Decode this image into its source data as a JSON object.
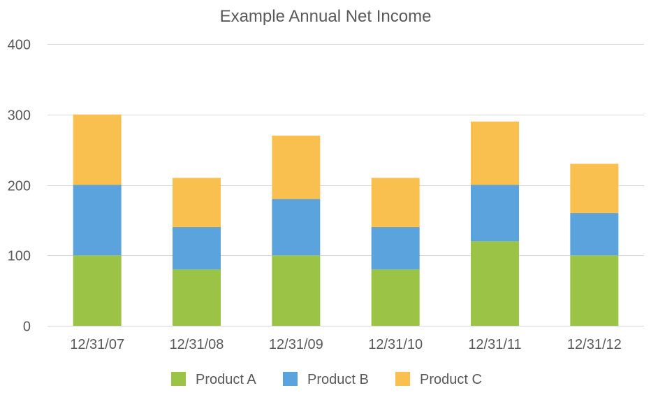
{
  "chart_data": {
    "type": "bar",
    "stacked": true,
    "title": "Example Annual Net Income",
    "xlabel": "",
    "ylabel": "",
    "categories": [
      "12/31/07",
      "12/31/08",
      "12/31/09",
      "12/31/10",
      "12/31/11",
      "12/31/12"
    ],
    "series": [
      {
        "name": "Product A",
        "color": "#9bc346",
        "values": [
          100,
          80,
          100,
          80,
          120,
          100
        ]
      },
      {
        "name": "Product B",
        "color": "#5ba3dc",
        "values": [
          100,
          60,
          80,
          60,
          80,
          60
        ]
      },
      {
        "name": "Product C",
        "color": "#fac04f",
        "values": [
          100,
          70,
          90,
          70,
          90,
          70
        ]
      }
    ],
    "ylim": [
      0,
      400
    ],
    "yticks": [
      0,
      100,
      200,
      300,
      400
    ],
    "grid": true,
    "legend_position": "bottom"
  }
}
